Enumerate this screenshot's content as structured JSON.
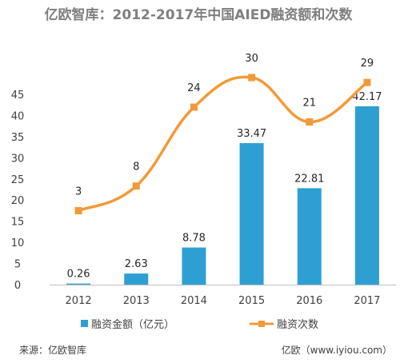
{
  "chart_data": {
    "type": "bar+line",
    "title": "亿欧智库：2012-2017年中国AIED融资额和次数",
    "categories": [
      "2012",
      "2013",
      "2014",
      "2015",
      "2016",
      "2017"
    ],
    "ylim": [
      0,
      45
    ],
    "yticks": [
      "0",
      "5",
      "10",
      "15",
      "20",
      "25",
      "30",
      "35",
      "40",
      "45"
    ],
    "line_ylim": [
      -12,
      36
    ],
    "series": [
      {
        "name": "融资金额（亿元）",
        "kind": "bar",
        "color": "#2e9fd3",
        "values": [
          0.26,
          2.63,
          8.78,
          33.47,
          22.81,
          42.17
        ],
        "labels": [
          "0.26",
          "2.63",
          "8.78",
          "33.47",
          "22.81",
          "42.17"
        ]
      },
      {
        "name": "融资次数",
        "kind": "line",
        "color": "#f19a38",
        "values": [
          3,
          8,
          24,
          30,
          21,
          29
        ],
        "labels": [
          "3",
          "8",
          "24",
          "30",
          "21",
          "29"
        ]
      }
    ],
    "legend_position": "bottom",
    "grid": false
  },
  "footer": {
    "source": "来源：亿欧智库",
    "credit": "亿欧（www.iyiou.com）"
  }
}
